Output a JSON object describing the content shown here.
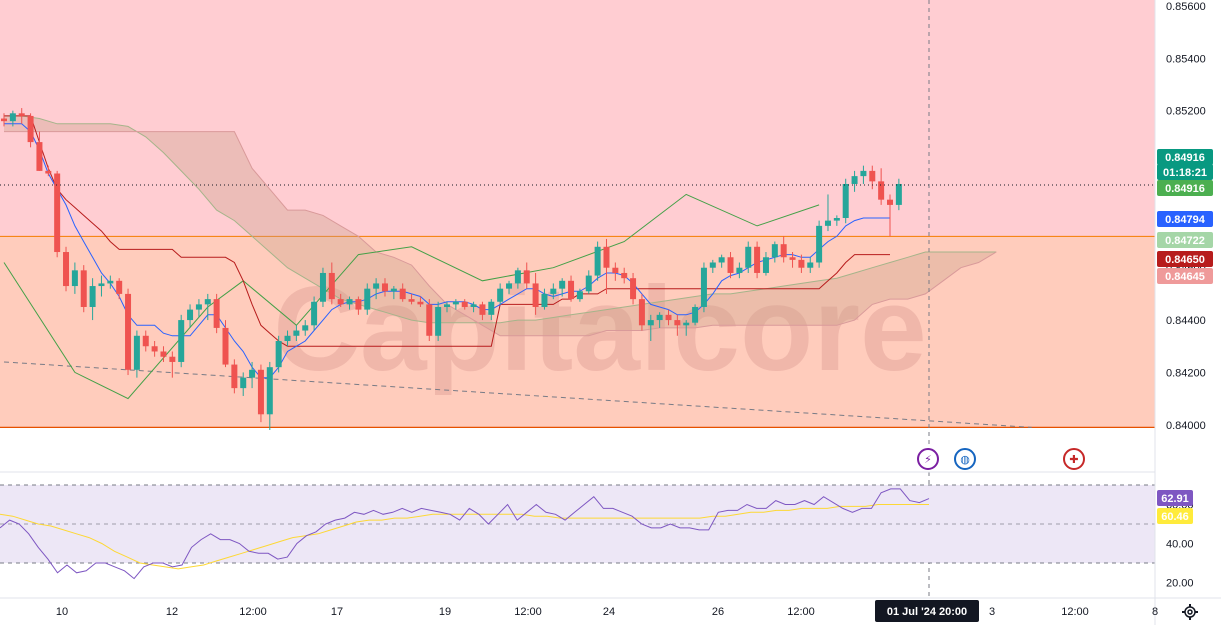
{
  "watermark": "Capitalcore",
  "price_axis": {
    "ticks": [
      "0.85600",
      "0.85400",
      "0.85200",
      "0.85000",
      "0.84800",
      "0.84600",
      "0.84400",
      "0.84200",
      "0.84000"
    ],
    "tags": [
      {
        "text": "0.84916",
        "color": "#089981"
      },
      {
        "text": "01:18:21",
        "color": "#089981"
      },
      {
        "text": "0.84916",
        "color": "#4caf50"
      },
      {
        "text": "0.84794",
        "color": "#2962ff"
      },
      {
        "text": "0.84722",
        "color": "#a5d6a7",
        "dark": true
      },
      {
        "text": "0.84650",
        "color": "#b71c1c"
      },
      {
        "text": "0.84645",
        "color": "#ef9a9a",
        "dark": true
      }
    ]
  },
  "rsi_axis": {
    "ticks": [
      "60.00",
      "40.00",
      "20.00"
    ],
    "tags": [
      {
        "text": "62.91",
        "color": "#7e57c2"
      },
      {
        "text": "60.46",
        "color": "#ffeb3b",
        "dark": true
      }
    ]
  },
  "time_axis": {
    "labels": [
      "10",
      "12",
      "12:00",
      "17",
      "19",
      "12:00",
      "24",
      "26",
      "12:00",
      "3",
      "12:00",
      "8"
    ],
    "crosshair_label": "01 Jul '24   20:00"
  },
  "colors": {
    "up": "#26a69a",
    "down": "#ef5350",
    "zone_top": "#ffcdd2",
    "zone_bottom": "#ffccbc",
    "tenkan": "#2962ff",
    "kijun": "#b71c1c",
    "lagging": "#43a047",
    "rsi": "#7e57c2",
    "rsi_ma": "#fdd835",
    "rsi_bg": "#ede7f6"
  },
  "icons": [
    "settings-gear-icon",
    "lightning-event-icon",
    "globe-event-icon",
    "uk-flag-event-icon"
  ],
  "chart_data": {
    "type": "candlestick",
    "ylim": [
      0.8398,
      0.856
    ],
    "candles": [
      [
        0.8517,
        0.8519,
        0.8514,
        0.8516
      ],
      [
        0.8516,
        0.852,
        0.8514,
        0.8519
      ],
      [
        0.8519,
        0.8521,
        0.8515,
        0.8518
      ],
      [
        0.8518,
        0.8519,
        0.8506,
        0.8508
      ],
      [
        0.8508,
        0.8512,
        0.8497,
        0.8497
      ],
      [
        0.8497,
        0.8499,
        0.8495,
        0.8496
      ],
      [
        0.8496,
        0.8497,
        0.8464,
        0.8466
      ],
      [
        0.8466,
        0.8468,
        0.8451,
        0.8453
      ],
      [
        0.8453,
        0.8462,
        0.845,
        0.8459
      ],
      [
        0.8459,
        0.8461,
        0.8443,
        0.8445
      ],
      [
        0.8445,
        0.8456,
        0.844,
        0.8453
      ],
      [
        0.8453,
        0.8457,
        0.8449,
        0.8454
      ],
      [
        0.8454,
        0.8457,
        0.8452,
        0.8455
      ],
      [
        0.8455,
        0.8456,
        0.8448,
        0.845
      ],
      [
        0.845,
        0.8452,
        0.8419,
        0.8421
      ],
      [
        0.8421,
        0.8436,
        0.8418,
        0.8434
      ],
      [
        0.8434,
        0.8436,
        0.8428,
        0.843
      ],
      [
        0.843,
        0.8432,
        0.8426,
        0.8428
      ],
      [
        0.8428,
        0.843,
        0.8424,
        0.8426
      ],
      [
        0.8426,
        0.8428,
        0.8418,
        0.8424
      ],
      [
        0.8424,
        0.8442,
        0.8422,
        0.844
      ],
      [
        0.844,
        0.8446,
        0.8437,
        0.8444
      ],
      [
        0.8444,
        0.8448,
        0.8441,
        0.8446
      ],
      [
        0.8446,
        0.845,
        0.844,
        0.8448
      ],
      [
        0.8448,
        0.845,
        0.8435,
        0.8437
      ],
      [
        0.8437,
        0.844,
        0.8422,
        0.8423
      ],
      [
        0.8423,
        0.8425,
        0.8412,
        0.8414
      ],
      [
        0.8414,
        0.842,
        0.8411,
        0.8418
      ],
      [
        0.8418,
        0.8424,
        0.8414,
        0.8421
      ],
      [
        0.8421,
        0.8423,
        0.8401,
        0.8404
      ],
      [
        0.8404,
        0.8424,
        0.8398,
        0.8422
      ],
      [
        0.8422,
        0.8434,
        0.842,
        0.8432
      ],
      [
        0.8432,
        0.8436,
        0.843,
        0.8434
      ],
      [
        0.8434,
        0.8438,
        0.8432,
        0.8436
      ],
      [
        0.8436,
        0.844,
        0.8434,
        0.8438
      ],
      [
        0.8438,
        0.8449,
        0.8436,
        0.8447
      ],
      [
        0.8447,
        0.846,
        0.8445,
        0.8458
      ],
      [
        0.8458,
        0.8462,
        0.8446,
        0.8448
      ],
      [
        0.8448,
        0.845,
        0.8445,
        0.8446
      ],
      [
        0.8446,
        0.8449,
        0.8444,
        0.8448
      ],
      [
        0.8448,
        0.8449,
        0.8442,
        0.8444
      ],
      [
        0.8444,
        0.8454,
        0.8442,
        0.8452
      ],
      [
        0.8452,
        0.8456,
        0.8448,
        0.8454
      ],
      [
        0.8454,
        0.8456,
        0.8449,
        0.8451
      ],
      [
        0.8451,
        0.8453,
        0.8448,
        0.8452
      ],
      [
        0.8452,
        0.8454,
        0.8447,
        0.8448
      ],
      [
        0.8448,
        0.845,
        0.8446,
        0.8447
      ],
      [
        0.8447,
        0.8449,
        0.8445,
        0.8446
      ],
      [
        0.8446,
        0.8448,
        0.8432,
        0.8434
      ],
      [
        0.8434,
        0.8447,
        0.8432,
        0.8445
      ],
      [
        0.8445,
        0.8447,
        0.8443,
        0.8446
      ],
      [
        0.8446,
        0.8448,
        0.8444,
        0.8447
      ],
      [
        0.8447,
        0.8448,
        0.8444,
        0.8445
      ],
      [
        0.8445,
        0.8447,
        0.8443,
        0.8446
      ],
      [
        0.8446,
        0.8447,
        0.844,
        0.8442
      ],
      [
        0.8442,
        0.8448,
        0.844,
        0.8447
      ],
      [
        0.8447,
        0.8454,
        0.8446,
        0.8452
      ],
      [
        0.8452,
        0.8455,
        0.845,
        0.8454
      ],
      [
        0.8454,
        0.846,
        0.8452,
        0.8459
      ],
      [
        0.8459,
        0.8462,
        0.8452,
        0.8454
      ],
      [
        0.8454,
        0.8458,
        0.8442,
        0.8445
      ],
      [
        0.8445,
        0.8452,
        0.8444,
        0.845
      ],
      [
        0.845,
        0.8454,
        0.8448,
        0.8452
      ],
      [
        0.8452,
        0.8456,
        0.8449,
        0.8455
      ],
      [
        0.8455,
        0.8457,
        0.8447,
        0.8448
      ],
      [
        0.8448,
        0.8452,
        0.8447,
        0.8451
      ],
      [
        0.8451,
        0.8459,
        0.845,
        0.8457
      ],
      [
        0.8457,
        0.847,
        0.8455,
        0.8468
      ],
      [
        0.8468,
        0.8471,
        0.845,
        0.846
      ],
      [
        0.846,
        0.8462,
        0.8455,
        0.8458
      ],
      [
        0.8458,
        0.846,
        0.8454,
        0.8456
      ],
      [
        0.8456,
        0.8458,
        0.8446,
        0.8448
      ],
      [
        0.8448,
        0.845,
        0.8436,
        0.8438
      ],
      [
        0.8438,
        0.8442,
        0.8432,
        0.844
      ],
      [
        0.844,
        0.8443,
        0.8437,
        0.8442
      ],
      [
        0.8442,
        0.8444,
        0.8438,
        0.844
      ],
      [
        0.844,
        0.8442,
        0.8434,
        0.8438
      ],
      [
        0.8438,
        0.844,
        0.8434,
        0.8439
      ],
      [
        0.8439,
        0.8446,
        0.8438,
        0.8445
      ],
      [
        0.8445,
        0.8462,
        0.8443,
        0.846
      ],
      [
        0.846,
        0.8463,
        0.8458,
        0.8462
      ],
      [
        0.8462,
        0.8465,
        0.846,
        0.8464
      ],
      [
        0.8464,
        0.8466,
        0.8456,
        0.8458
      ],
      [
        0.8458,
        0.8462,
        0.8456,
        0.846
      ],
      [
        0.846,
        0.847,
        0.8458,
        0.8468
      ],
      [
        0.8468,
        0.847,
        0.8456,
        0.8458
      ],
      [
        0.8458,
        0.8466,
        0.8457,
        0.8464
      ],
      [
        0.8464,
        0.847,
        0.8462,
        0.8469
      ],
      [
        0.8469,
        0.8472,
        0.8462,
        0.8464
      ],
      [
        0.8464,
        0.8466,
        0.846,
        0.8463
      ],
      [
        0.8463,
        0.8465,
        0.8458,
        0.846
      ],
      [
        0.846,
        0.8464,
        0.8458,
        0.8462
      ],
      [
        0.8462,
        0.8478,
        0.846,
        0.8476
      ],
      [
        0.8476,
        0.8488,
        0.8474,
        0.8478
      ],
      [
        0.8478,
        0.848,
        0.8476,
        0.8479
      ],
      [
        0.8479,
        0.8494,
        0.8477,
        0.8492
      ],
      [
        0.8492,
        0.8497,
        0.8489,
        0.8495
      ],
      [
        0.8495,
        0.8499,
        0.8492,
        0.8497
      ],
      [
        0.8497,
        0.8499,
        0.849,
        0.8493
      ],
      [
        0.8493,
        0.8498,
        0.8484,
        0.8486
      ],
      [
        0.8486,
        0.8488,
        0.8472,
        0.8484
      ],
      [
        0.8484,
        0.8494,
        0.8482,
        0.8492
      ]
    ],
    "tenkan": [
      0.8515,
      0.8515,
      0.8515,
      0.8512,
      0.8505,
      0.8496,
      0.849,
      0.8484,
      0.8476,
      0.847,
      0.8464,
      0.8458,
      0.8454,
      0.8449,
      0.8442,
      0.8438,
      0.8438,
      0.8438,
      0.8435,
      0.8434,
      0.8434,
      0.8434,
      0.8438,
      0.8442,
      0.8442,
      0.8437,
      0.8432,
      0.8428,
      0.8422,
      0.8418,
      0.8418,
      0.8422,
      0.8428,
      0.843,
      0.8432,
      0.8436,
      0.844,
      0.8444,
      0.8446,
      0.8447,
      0.8447,
      0.8448,
      0.845,
      0.8451,
      0.8451,
      0.8451,
      0.845,
      0.8449,
      0.8446,
      0.8446,
      0.8447,
      0.8447,
      0.8447,
      0.8446,
      0.8444,
      0.8444,
      0.8446,
      0.8448,
      0.845,
      0.8452,
      0.8452,
      0.845,
      0.8449,
      0.845,
      0.8451,
      0.8451,
      0.8453,
      0.8456,
      0.8458,
      0.8458,
      0.8457,
      0.8454,
      0.845,
      0.8446,
      0.8445,
      0.8444,
      0.8442,
      0.8442,
      0.8443,
      0.8446,
      0.845,
      0.8455,
      0.8457,
      0.8458,
      0.846,
      0.8462,
      0.8463,
      0.8464,
      0.8465,
      0.8465,
      0.8464,
      0.8464,
      0.8467,
      0.847,
      0.8472,
      0.8476,
      0.8478,
      0.8479,
      0.8479,
      0.8479,
      0.8479
    ],
    "kijun": [
      0.8518,
      0.8518,
      0.8518,
      0.8518,
      0.8508,
      0.8498,
      0.849,
      0.8486,
      0.8483,
      0.848,
      0.8477,
      0.8474,
      0.847,
      0.8467,
      0.8467,
      0.8467,
      0.8467,
      0.8467,
      0.8467,
      0.8467,
      0.8464,
      0.8464,
      0.8464,
      0.8464,
      0.8464,
      0.8464,
      0.8462,
      0.8455,
      0.8446,
      0.8438,
      0.8435,
      0.8432,
      0.843,
      0.843,
      0.843,
      0.843,
      0.843,
      0.843,
      0.843,
      0.843,
      0.843,
      0.843,
      0.843,
      0.843,
      0.843,
      0.843,
      0.843,
      0.843,
      0.843,
      0.843,
      0.843,
      0.843,
      0.843,
      0.843,
      0.843,
      0.843,
      0.8446,
      0.8446,
      0.8446,
      0.8446,
      0.8446,
      0.8446,
      0.8446,
      0.8448,
      0.8448,
      0.845,
      0.845,
      0.845,
      0.8452,
      0.8452,
      0.8452,
      0.8452,
      0.8452,
      0.8452,
      0.8452,
      0.8452,
      0.8452,
      0.8452,
      0.8452,
      0.8452,
      0.8452,
      0.8452,
      0.8452,
      0.8452,
      0.8452,
      0.8452,
      0.8452,
      0.8452,
      0.8452,
      0.8452,
      0.8452,
      0.8452,
      0.8452,
      0.8455,
      0.8458,
      0.8462,
      0.8465,
      0.8465,
      0.8465,
      0.8465,
      0.8465
    ],
    "lagging": [
      [
        0,
        0.8462
      ],
      [
        8,
        0.842
      ],
      [
        14,
        0.841
      ],
      [
        23,
        0.8445
      ],
      [
        27,
        0.8455
      ],
      [
        33,
        0.8438
      ],
      [
        40,
        0.8465
      ],
      [
        46,
        0.8468
      ],
      [
        54,
        0.8455
      ],
      [
        62,
        0.846
      ],
      [
        70,
        0.847
      ],
      [
        77,
        0.8488
      ],
      [
        85,
        0.8476
      ],
      [
        92,
        0.8484
      ]
    ],
    "cloud": {
      "a": [
        0.8518,
        0.8518,
        0.8517,
        0.8515,
        0.8515,
        0.8515,
        0.8515,
        0.8514,
        0.851,
        0.8504,
        0.8497,
        0.849,
        0.8482,
        0.8478,
        0.8472,
        0.8466,
        0.846,
        0.8456,
        0.8452,
        0.8448,
        0.8446,
        0.8444,
        0.8442,
        0.844,
        0.8439,
        0.8439,
        0.8439,
        0.8439,
        0.8439,
        0.844,
        0.844,
        0.8441,
        0.8442,
        0.8443,
        0.8444,
        0.8445,
        0.8446,
        0.8447,
        0.8448,
        0.8449,
        0.845,
        0.845,
        0.8451,
        0.8452,
        0.8453,
        0.8454,
        0.8455,
        0.8456,
        0.8458,
        0.846,
        0.8462,
        0.8464,
        0.8466,
        0.8466,
        0.8466,
        0.8466,
        0.8466
      ],
      "b": [
        0.8512,
        0.8512,
        0.8512,
        0.8512,
        0.8512,
        0.8512,
        0.8512,
        0.8512,
        0.8512,
        0.8512,
        0.8512,
        0.8512,
        0.8512,
        0.8512,
        0.8498,
        0.849,
        0.8482,
        0.8482,
        0.848,
        0.8476,
        0.8472,
        0.8466,
        0.8464,
        0.8461,
        0.8453,
        0.8446,
        0.8442,
        0.8438,
        0.8434,
        0.8434,
        0.8434,
        0.8434,
        0.8434,
        0.8434,
        0.8436,
        0.8436,
        0.8436,
        0.8437,
        0.8437,
        0.8437,
        0.8438,
        0.8438,
        0.8438,
        0.8438,
        0.8438,
        0.8438,
        0.8438,
        0.8438,
        0.844,
        0.8446,
        0.8448,
        0.8448,
        0.845,
        0.8455,
        0.846,
        0.8462,
        0.8466
      ]
    },
    "zone": {
      "upper": 0.8472,
      "lower": 0.8399
    },
    "trendline": [
      [
        0,
        0.8424
      ],
      [
        116,
        0.8399
      ]
    ],
    "last_price": 0.84916,
    "rsi": [
      48,
      52,
      50,
      45,
      38,
      32,
      25,
      29,
      25,
      26,
      30,
      30,
      28,
      26,
      22,
      28,
      30,
      30,
      28,
      29,
      38,
      42,
      45,
      42,
      42,
      40,
      36,
      35,
      35,
      32,
      33,
      40,
      44,
      46,
      50,
      52,
      53,
      56,
      55,
      57,
      55,
      56,
      58,
      56,
      58,
      57,
      56,
      55,
      52,
      58,
      55,
      50,
      55,
      60,
      52,
      56,
      60,
      56,
      55,
      52,
      56,
      60,
      64,
      58,
      58,
      56,
      54,
      50,
      48,
      48,
      50,
      48,
      48,
      47,
      47,
      56,
      57,
      57,
      60,
      58,
      58,
      62,
      60,
      60,
      62,
      60,
      64,
      61,
      58,
      56,
      58,
      58,
      66,
      68,
      68,
      62,
      61,
      63
    ],
    "rsi_ma": [
      55,
      54,
      52,
      50,
      49,
      47,
      45,
      43,
      40,
      36,
      33,
      30,
      29,
      28,
      27,
      28,
      29,
      31,
      33,
      35,
      37,
      39,
      41,
      43,
      44,
      45,
      47,
      49,
      51,
      52,
      52,
      53,
      53,
      54,
      55,
      55,
      55,
      55,
      55,
      55,
      55,
      55,
      54,
      54,
      53,
      53,
      53,
      53,
      53,
      53,
      53,
      53,
      53,
      53,
      53,
      53,
      54,
      54,
      55,
      56,
      56,
      57,
      57,
      58,
      58,
      58,
      59,
      59,
      59,
      60,
      60,
      60,
      60,
      60
    ],
    "rsi_levels": [
      70,
      30
    ]
  }
}
